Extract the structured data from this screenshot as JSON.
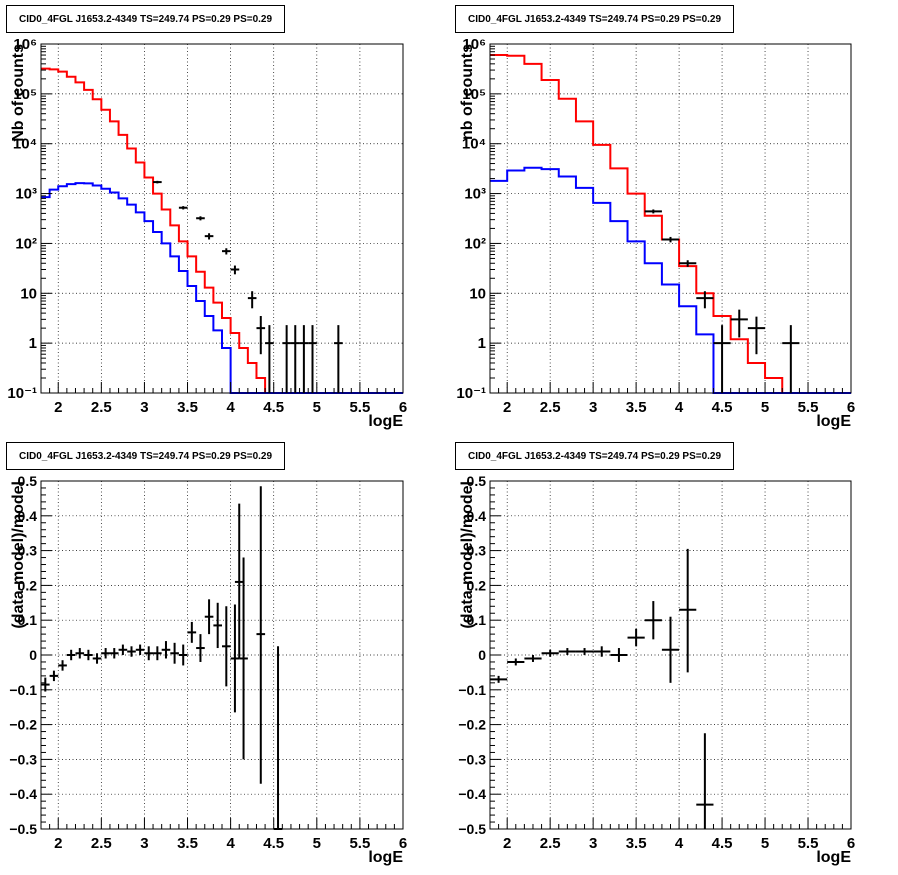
{
  "pads": [
    {
      "title": "CID0_4FGL J1653.2-4349 TS=249.74 PS=0.29 PS=0.29",
      "xlabel": "logE",
      "ylabel": "Nb of counts",
      "xlim": [
        1.8,
        6
      ],
      "xticks": [
        "2",
        "2.5",
        "3",
        "3.5",
        "4",
        "4.5",
        "5",
        "5.5",
        "6"
      ],
      "ylim": [
        0.1,
        1000000
      ],
      "yscale": "log",
      "yticks": [
        "10⁻¹",
        "1",
        "10",
        "10²",
        "10³",
        "10⁴",
        "10⁵",
        "10⁶"
      ],
      "grid": true,
      "chart_data": {
        "type": "line",
        "x": "logE",
        "series": [
          {
            "color": "#ff0000",
            "style": "step",
            "edges": [
              1.8,
              1.9,
              2.0,
              2.1,
              2.2,
              2.3,
              2.4,
              2.5,
              2.6,
              2.7,
              2.8,
              2.9,
              3.0,
              3.1,
              3.2,
              3.3,
              3.4,
              3.5,
              3.6,
              3.7,
              3.8,
              3.9,
              4.0,
              4.1,
              4.2,
              4.3,
              4.4,
              4.5,
              4.6,
              4.7,
              4.8,
              4.9,
              5.0,
              5.1,
              5.2,
              5.3,
              5.4,
              5.5,
              5.6,
              5.7,
              5.8,
              5.9,
              6.0
            ],
            "values": [
              320000,
              310000,
              280000,
              220000,
              170000,
              120000,
              78000,
              48000,
              28000,
              15000,
              8000,
              4200,
              2100,
              1000,
              480,
              230,
              110,
              55,
              27,
              13,
              6.5,
              3.2,
              1.6,
              0.8,
              0.4,
              0.2,
              0.1,
              0.1,
              0.1,
              0.1,
              0.1,
              0.1,
              0.1,
              0.1,
              0.1,
              0.1,
              0.1,
              0.1,
              0.1,
              0.1,
              0.1,
              0.1
            ]
          },
          {
            "color": "#0000ff",
            "style": "step",
            "edges": [
              1.8,
              1.9,
              2.0,
              2.1,
              2.2,
              2.3,
              2.4,
              2.5,
              2.6,
              2.7,
              2.8,
              2.9,
              3.0,
              3.1,
              3.2,
              3.3,
              3.4,
              3.5,
              3.6,
              3.7,
              3.8,
              3.9,
              4.0,
              4.1,
              4.2,
              4.3,
              4.4,
              4.5,
              4.6,
              4.7,
              4.8,
              4.9,
              5.0,
              5.1,
              5.2,
              5.3,
              5.4,
              5.5,
              5.6,
              5.7,
              5.8,
              5.9,
              6.0
            ],
            "values": [
              850,
              1200,
              1400,
              1550,
              1620,
              1600,
              1450,
              1250,
              1050,
              800,
              600,
              420,
              280,
              170,
              100,
              55,
              28,
              14,
              7,
              3.5,
              1.8,
              0.8,
              0.1,
              0.1,
              0.1,
              0.1,
              0.1,
              0.1,
              0.1,
              0.1,
              0.1,
              0.1,
              0.1,
              0.1,
              0.1,
              0.1,
              0.1,
              0.1,
              0.1,
              0.1,
              0.1,
              0.1
            ]
          }
        ],
        "points": [
          {
            "x": 3.15,
            "y": 1700,
            "xe": 0.05,
            "lo": 1600,
            "hi": 1800
          },
          {
            "x": 3.45,
            "y": 520,
            "xe": 0.05,
            "lo": 480,
            "hi": 560
          },
          {
            "x": 3.65,
            "y": 320,
            "xe": 0.05,
            "lo": 290,
            "hi": 350
          },
          {
            "x": 3.75,
            "y": 140,
            "xe": 0.05,
            "lo": 120,
            "hi": 160
          },
          {
            "x": 3.95,
            "y": 70,
            "xe": 0.05,
            "lo": 60,
            "hi": 80
          },
          {
            "x": 4.05,
            "y": 30,
            "xe": 0.05,
            "lo": 24,
            "hi": 36
          },
          {
            "x": 4.25,
            "y": 8,
            "xe": 0.05,
            "lo": 5,
            "hi": 11
          },
          {
            "x": 4.35,
            "y": 2,
            "xe": 0.05,
            "lo": 0.6,
            "hi": 3.5
          },
          {
            "x": 4.45,
            "y": 1,
            "xe": 0.05,
            "lo": 0.1,
            "hi": 2.3
          },
          {
            "x": 4.65,
            "y": 1,
            "xe": 0.05,
            "lo": 0.1,
            "hi": 2.3
          },
          {
            "x": 4.75,
            "y": 1,
            "xe": 0.05,
            "lo": 0.1,
            "hi": 2.3
          },
          {
            "x": 4.85,
            "y": 1,
            "xe": 0.05,
            "lo": 0.1,
            "hi": 2.3
          },
          {
            "x": 4.95,
            "y": 1,
            "xe": 0.05,
            "lo": 0.1,
            "hi": 2.3
          },
          {
            "x": 5.25,
            "y": 1,
            "xe": 0.05,
            "lo": 0.1,
            "hi": 2.3
          }
        ]
      }
    },
    {
      "title": "CID0_4FGL J1653.2-4349 TS=249.74 PS=0.29 PS=0.29",
      "xlabel": "logE",
      "ylabel": "nb of counts",
      "xlim": [
        1.8,
        6
      ],
      "xticks": [
        "2",
        "2.5",
        "3",
        "3.5",
        "4",
        "4.5",
        "5",
        "5.5",
        "6"
      ],
      "ylim": [
        0.1,
        1000000
      ],
      "yscale": "log",
      "yticks": [
        "10⁻¹",
        "1",
        "10",
        "10²",
        "10³",
        "10⁴",
        "10⁵",
        "10⁶"
      ],
      "grid": true,
      "chart_data": {
        "type": "line",
        "x": "logE",
        "series": [
          {
            "color": "#ff0000",
            "style": "step",
            "edges": [
              1.8,
              2.0,
              2.2,
              2.4,
              2.6,
              2.8,
              3.0,
              3.2,
              3.4,
              3.6,
              3.8,
              4.0,
              4.2,
              4.4,
              4.6,
              4.8,
              5.0,
              5.2,
              5.4,
              5.6,
              5.8,
              6.0
            ],
            "values": [
              600000,
              580000,
              400000,
              190000,
              80000,
              28000,
              9500,
              3200,
              1000,
              360,
              120,
              35,
              10,
              3.5,
              1.2,
              0.4,
              0.2,
              0.1,
              0.1,
              0.1,
              0.1
            ]
          },
          {
            "color": "#0000ff",
            "style": "step",
            "edges": [
              1.8,
              2.0,
              2.2,
              2.4,
              2.6,
              2.8,
              3.0,
              3.2,
              3.4,
              3.6,
              3.8,
              4.0,
              4.2,
              4.4,
              4.6,
              4.8,
              5.0,
              5.2,
              5.4,
              5.6,
              5.8,
              6.0
            ],
            "values": [
              1800,
              2900,
              3300,
              3100,
              2200,
              1300,
              650,
              280,
              110,
              40,
              15,
              5.5,
              1.5,
              0.1,
              0.1,
              0.1,
              0.1,
              0.1,
              0.1,
              0.1,
              0.1
            ]
          }
        ],
        "points": [
          {
            "x": 3.7,
            "y": 440,
            "xe": 0.1,
            "lo": 400,
            "hi": 480
          },
          {
            "x": 3.9,
            "y": 120,
            "xe": 0.1,
            "lo": 105,
            "hi": 135
          },
          {
            "x": 4.1,
            "y": 40,
            "xe": 0.1,
            "lo": 34,
            "hi": 46
          },
          {
            "x": 4.3,
            "y": 8,
            "xe": 0.1,
            "lo": 5,
            "hi": 11
          },
          {
            "x": 4.5,
            "y": 1,
            "xe": 0.1,
            "lo": 0.1,
            "hi": 2.3
          },
          {
            "x": 4.7,
            "y": 3,
            "xe": 0.1,
            "lo": 1.3,
            "hi": 4.7
          },
          {
            "x": 4.9,
            "y": 2,
            "xe": 0.1,
            "lo": 0.6,
            "hi": 3.4
          },
          {
            "x": 5.3,
            "y": 1,
            "xe": 0.1,
            "lo": 0.1,
            "hi": 2.3
          }
        ]
      }
    },
    {
      "title": "CID0_4FGL J1653.2-4349 TS=249.74 PS=0.29 PS=0.29",
      "xlabel": "logE",
      "ylabel": "(data-model)/model",
      "xlim": [
        1.8,
        6
      ],
      "xticks": [
        "2",
        "2.5",
        "3",
        "3.5",
        "4",
        "4.5",
        "5",
        "5.5",
        "6"
      ],
      "ylim": [
        -0.5,
        0.5
      ],
      "yscale": "linear",
      "yticks": [
        "−0.5",
        "−0.4",
        "−0.3",
        "−0.2",
        "−0.1",
        "0",
        "0.1",
        "0.2",
        "0.3",
        "0.4",
        "0.5"
      ],
      "grid": true,
      "chart_data": {
        "type": "scatter",
        "x": "logE",
        "points": [
          {
            "x": 1.85,
            "y": -0.085,
            "xe": 0.05,
            "lo": -0.105,
            "hi": -0.065
          },
          {
            "x": 1.95,
            "y": -0.06,
            "xe": 0.05,
            "lo": -0.075,
            "hi": -0.045
          },
          {
            "x": 2.05,
            "y": -0.03,
            "xe": 0.05,
            "lo": -0.045,
            "hi": -0.015
          },
          {
            "x": 2.15,
            "y": 0.0,
            "xe": 0.05,
            "lo": -0.015,
            "hi": 0.015
          },
          {
            "x": 2.25,
            "y": 0.005,
            "xe": 0.05,
            "lo": -0.01,
            "hi": 0.02
          },
          {
            "x": 2.35,
            "y": 0.0,
            "xe": 0.05,
            "lo": -0.015,
            "hi": 0.015
          },
          {
            "x": 2.45,
            "y": -0.01,
            "xe": 0.05,
            "lo": -0.025,
            "hi": 0.005
          },
          {
            "x": 2.55,
            "y": 0.005,
            "xe": 0.05,
            "lo": -0.01,
            "hi": 0.02
          },
          {
            "x": 2.65,
            "y": 0.005,
            "xe": 0.05,
            "lo": -0.01,
            "hi": 0.02
          },
          {
            "x": 2.75,
            "y": 0.015,
            "xe": 0.05,
            "lo": 0.0,
            "hi": 0.03
          },
          {
            "x": 2.85,
            "y": 0.01,
            "xe": 0.05,
            "lo": -0.005,
            "hi": 0.025
          },
          {
            "x": 2.95,
            "y": 0.015,
            "xe": 0.05,
            "lo": 0.0,
            "hi": 0.03
          },
          {
            "x": 3.05,
            "y": 0.005,
            "xe": 0.05,
            "lo": -0.015,
            "hi": 0.025
          },
          {
            "x": 3.15,
            "y": 0.005,
            "xe": 0.05,
            "lo": -0.015,
            "hi": 0.025
          },
          {
            "x": 3.25,
            "y": 0.015,
            "xe": 0.05,
            "lo": -0.01,
            "hi": 0.04
          },
          {
            "x": 3.35,
            "y": 0.005,
            "xe": 0.05,
            "lo": -0.025,
            "hi": 0.035
          },
          {
            "x": 3.45,
            "y": 0.0,
            "xe": 0.05,
            "lo": -0.03,
            "hi": 0.03
          },
          {
            "x": 3.55,
            "y": 0.065,
            "xe": 0.05,
            "lo": 0.035,
            "hi": 0.095
          },
          {
            "x": 3.65,
            "y": 0.02,
            "xe": 0.05,
            "lo": -0.02,
            "hi": 0.06
          },
          {
            "x": 3.75,
            "y": 0.11,
            "xe": 0.05,
            "lo": 0.06,
            "hi": 0.16
          },
          {
            "x": 3.85,
            "y": 0.085,
            "xe": 0.05,
            "lo": 0.02,
            "hi": 0.15
          },
          {
            "x": 3.95,
            "y": 0.025,
            "xe": 0.05,
            "lo": -0.09,
            "hi": 0.14
          },
          {
            "x": 4.05,
            "y": -0.01,
            "xe": 0.05,
            "lo": -0.165,
            "hi": 0.145
          },
          {
            "x": 4.1,
            "y": 0.21,
            "xe": 0.05,
            "lo": -0.01,
            "hi": 0.435
          },
          {
            "x": 4.15,
            "y": -0.01,
            "xe": 0.05,
            "lo": -0.3,
            "hi": 0.28
          },
          {
            "x": 4.35,
            "y": 0.06,
            "xe": 0.05,
            "lo": -0.37,
            "hi": 0.485
          },
          {
            "x": 4.55,
            "y": -0.5,
            "xe": 0.05,
            "lo": -0.5,
            "hi": 0.025
          }
        ]
      }
    },
    {
      "title": "CID0_4FGL J1653.2-4349 TS=249.74 PS=0.29 PS=0.29",
      "xlabel": "logE",
      "ylabel": "(data-model)/model",
      "xlim": [
        1.8,
        6
      ],
      "xticks": [
        "2",
        "2.5",
        "3",
        "3.5",
        "4",
        "4.5",
        "5",
        "5.5",
        "6"
      ],
      "ylim": [
        -0.5,
        0.5
      ],
      "yscale": "linear",
      "yticks": [
        "−0.5",
        "−0.4",
        "−0.3",
        "−0.2",
        "−0.1",
        "0",
        "0.1",
        "0.2",
        "0.3",
        "0.4",
        "0.5"
      ],
      "grid": true,
      "chart_data": {
        "type": "scatter",
        "x": "logE",
        "points": [
          {
            "x": 1.9,
            "y": -0.07,
            "xe": 0.1,
            "lo": -0.08,
            "hi": -0.06
          },
          {
            "x": 2.1,
            "y": -0.02,
            "xe": 0.1,
            "lo": -0.03,
            "hi": -0.01
          },
          {
            "x": 2.3,
            "y": -0.01,
            "xe": 0.1,
            "lo": -0.02,
            "hi": 0.0
          },
          {
            "x": 2.5,
            "y": 0.005,
            "xe": 0.1,
            "lo": -0.005,
            "hi": 0.015
          },
          {
            "x": 2.7,
            "y": 0.01,
            "xe": 0.1,
            "lo": 0.0,
            "hi": 0.02
          },
          {
            "x": 2.9,
            "y": 0.01,
            "xe": 0.1,
            "lo": 0.0,
            "hi": 0.02
          },
          {
            "x": 3.1,
            "y": 0.01,
            "xe": 0.1,
            "lo": -0.005,
            "hi": 0.025
          },
          {
            "x": 3.3,
            "y": 0.0,
            "xe": 0.1,
            "lo": -0.02,
            "hi": 0.02
          },
          {
            "x": 3.5,
            "y": 0.05,
            "xe": 0.1,
            "lo": 0.025,
            "hi": 0.075
          },
          {
            "x": 3.7,
            "y": 0.1,
            "xe": 0.1,
            "lo": 0.045,
            "hi": 0.155
          },
          {
            "x": 3.9,
            "y": 0.015,
            "xe": 0.1,
            "lo": -0.08,
            "hi": 0.11
          },
          {
            "x": 4.1,
            "y": 0.13,
            "xe": 0.1,
            "lo": -0.05,
            "hi": 0.305
          },
          {
            "x": 4.3,
            "y": -0.43,
            "xe": 0.1,
            "lo": -0.5,
            "hi": -0.225
          }
        ]
      }
    }
  ]
}
